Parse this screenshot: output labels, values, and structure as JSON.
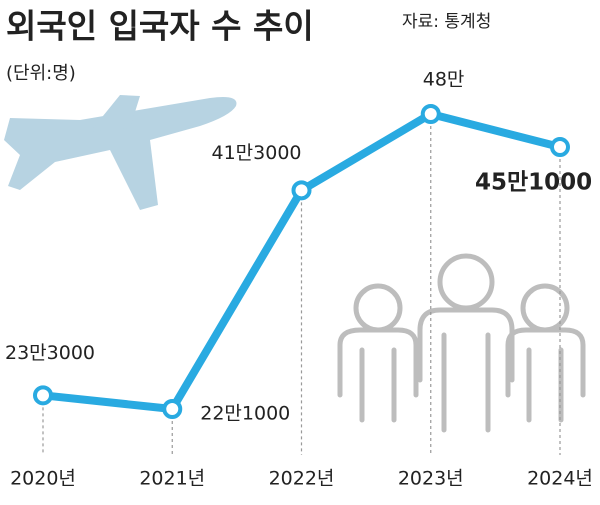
{
  "chart_data": {
    "type": "line",
    "title": "외국인 입국자 수 추이",
    "source": "자료: 통계청",
    "unit": "(단위:명)",
    "categories": [
      "2020년",
      "2021년",
      "2022년",
      "2023년",
      "2024년"
    ],
    "values": [
      233000,
      221000,
      413000,
      480000,
      451000
    ],
    "value_labels": [
      "23만3000",
      "22만1000",
      "41만3000",
      "48만",
      "45만1000"
    ],
    "color": "#29aae1"
  }
}
